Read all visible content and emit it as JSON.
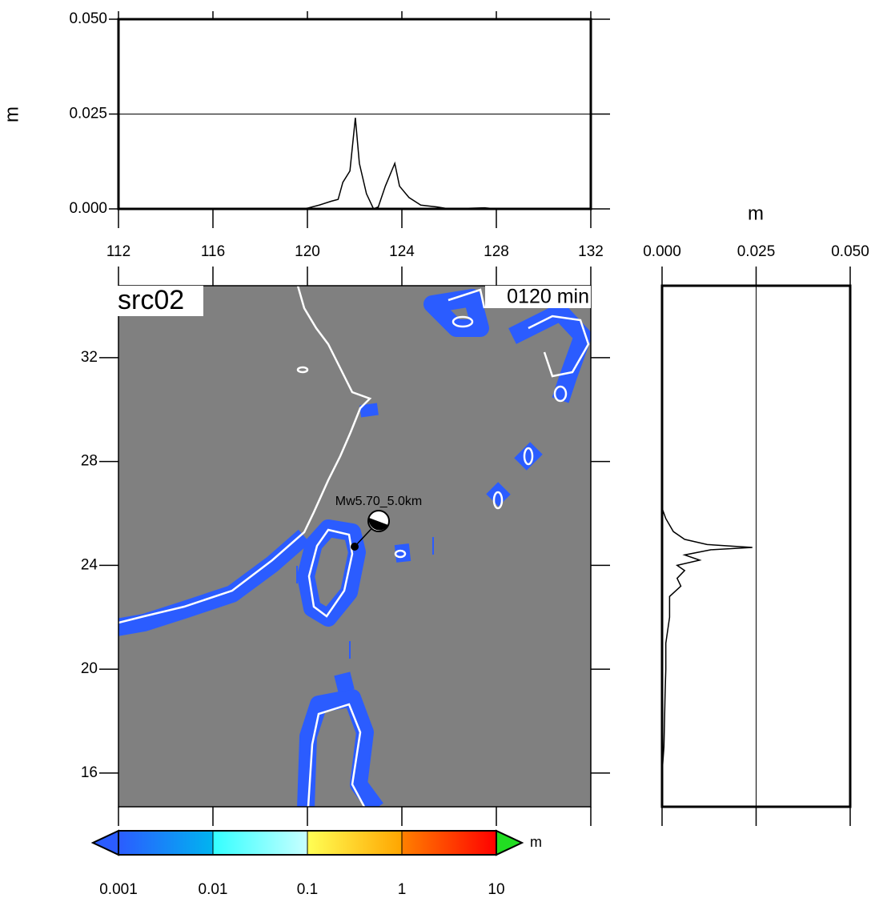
{
  "chart_data": [
    {
      "type": "line",
      "ylabel": "m",
      "x": [
        112,
        119.8,
        120,
        120.5,
        121,
        121.3,
        121.5,
        121.8,
        122.03,
        122.2,
        122.5,
        122.8,
        123,
        123.3,
        123.7,
        123.9,
        124.3,
        124.8,
        125.5,
        126,
        127.5,
        128,
        132
      ],
      "values": [
        0,
        0,
        0.0002,
        0.001,
        0.002,
        0.0025,
        0.007,
        0.01,
        0.024,
        0.012,
        0.004,
        0,
        0.0005,
        0.006,
        0.012,
        0.006,
        0.003,
        0.001,
        0.0005,
        0,
        0.0003,
        0,
        0
      ],
      "color": "#000000",
      "xlim": [
        112,
        132
      ],
      "xticks": [
        112,
        116,
        120,
        124,
        128,
        132
      ],
      "ylim": [
        0,
        0.05
      ],
      "yticks": [
        {
          "value": 0,
          "label": "0.000"
        },
        {
          "value": 0.025,
          "label": "0.025"
        },
        {
          "value": 0.05,
          "label": "0.050"
        }
      ],
      "grid": true
    },
    {
      "type": "map",
      "title": "src02",
      "time_label": "0120 min",
      "annotation": "Mw5.70_5.0km",
      "epicenter": [
        122.0,
        24.72
      ],
      "xlim": [
        112,
        132
      ],
      "xticks": [
        112,
        116,
        120,
        124,
        128,
        132
      ],
      "ylim": [
        14.7,
        34.77
      ],
      "yticks": [
        16,
        20,
        24,
        28,
        32
      ]
    },
    {
      "type": "vline",
      "xlabel": "m",
      "y": [
        26.2,
        25.8,
        25.3,
        25.0,
        24.8,
        24.69,
        24.6,
        24.4,
        24.2,
        24.0,
        23.8,
        23.5,
        23.2,
        22.8,
        22.0,
        21.0,
        20.0,
        19.0,
        17.0,
        16.0
      ],
      "values": [
        0,
        0.001,
        0.003,
        0.006,
        0.012,
        0.024,
        0.013,
        0.006,
        0.01,
        0.004,
        0.006,
        0.004,
        0.005,
        0.002,
        0.002,
        0.001,
        0.001,
        0.0008,
        0.0005,
        0
      ],
      "color": "#000000",
      "xlim": [
        0,
        0.05
      ],
      "xticks": [
        {
          "value": 0,
          "label": "0.000"
        },
        {
          "value": 0.025,
          "label": "0.025"
        },
        {
          "value": 0.05,
          "label": "0.050"
        }
      ],
      "ylim": [
        14.7,
        34.77
      ],
      "grid": true
    },
    {
      "type": "colorbar",
      "unit": "m",
      "log": true,
      "ticks": [
        0.001,
        0.01,
        0.1,
        1,
        10
      ],
      "colors": [
        [
          "#2b5cff",
          "#00b4f0"
        ],
        [
          "#33ffff",
          "#c8ffff"
        ],
        [
          "#ffff55",
          "#ffa500"
        ],
        [
          "#ff8000",
          "#ff0000"
        ]
      ]
    }
  ]
}
